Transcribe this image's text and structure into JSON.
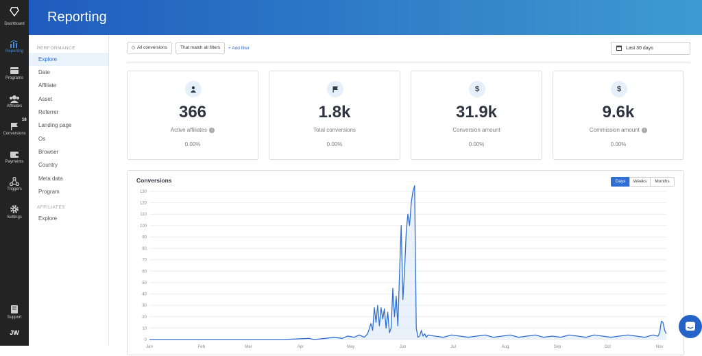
{
  "rail": {
    "items": [
      {
        "label": "Dashboard",
        "icon": "dashboard-icon"
      },
      {
        "label": "Reporting",
        "icon": "bar-chart-icon",
        "active": true
      },
      {
        "label": "Programs",
        "icon": "layers-icon"
      },
      {
        "label": "Affiliates",
        "icon": "users-icon"
      },
      {
        "label": "Conversions",
        "icon": "flag-icon",
        "badge": "16"
      },
      {
        "label": "Payments",
        "icon": "wallet-icon"
      },
      {
        "label": "Triggers",
        "icon": "network-icon"
      },
      {
        "label": "Settings",
        "icon": "gear-icon"
      },
      {
        "label": "Support",
        "icon": "book-icon"
      }
    ],
    "initials": "JW"
  },
  "header": {
    "title": "Reporting"
  },
  "subnav": {
    "performance_label": "PERFORMANCE",
    "performance_items": [
      "Explore",
      "Date",
      "Affiliate",
      "Asset",
      "Referrer",
      "Landing page",
      "Os",
      "Browser",
      "Country",
      "Meta data",
      "Program"
    ],
    "affiliates_label": "AFFILIATES",
    "affiliates_items": [
      "Explore"
    ]
  },
  "filters": {
    "all_conversions": "All conversions",
    "match": "That match all filters",
    "add_filter": "+ Add filter",
    "date_range": "Last 30 days"
  },
  "stats": [
    {
      "icon": "user-icon",
      "glyph": "",
      "value": "366",
      "label": "Active affiliates",
      "info": true,
      "change": "0.00%"
    },
    {
      "icon": "flag-icon",
      "glyph": "",
      "value": "1.8k",
      "label": "Total conversions",
      "info": false,
      "change": "0.00%"
    },
    {
      "icon": "dollar-icon",
      "glyph": "$",
      "value": "31.9k",
      "label": "Conversion amount",
      "info": false,
      "change": "0.00%"
    },
    {
      "icon": "dollar-icon",
      "glyph": "$",
      "value": "9.6k",
      "label": "Commission amount",
      "info": true,
      "change": "0.00%"
    }
  ],
  "chart": {
    "title": "Conversions",
    "toggles": [
      "Days",
      "Weeks",
      "Months"
    ],
    "active_toggle": "Days",
    "colors": {
      "line": "#2f6fd3",
      "fill": "#dbe7f7"
    }
  },
  "chart_data": {
    "type": "area",
    "title": "Conversions",
    "xlabel": "",
    "ylabel": "",
    "ylim": [
      0,
      130
    ],
    "yticks": [
      0,
      10,
      20,
      30,
      40,
      50,
      60,
      70,
      80,
      90,
      100,
      110,
      120,
      130
    ],
    "xticks": [
      {
        "label": "Jan",
        "x": 0
      },
      {
        "label": "Feb",
        "x": 31
      },
      {
        "label": "Mar",
        "x": 59
      },
      {
        "label": "Apr",
        "x": 90
      },
      {
        "label": "May",
        "x": 120
      },
      {
        "label": "Jun",
        "x": 151
      },
      {
        "label": "Jul",
        "x": 181
      },
      {
        "label": "Aug",
        "x": 212
      },
      {
        "label": "Sep",
        "x": 243
      },
      {
        "label": "Oct",
        "x": 273
      },
      {
        "label": "Nov",
        "x": 304
      }
    ],
    "grid": true,
    "series": [
      {
        "x": [
          0,
          20,
          40,
          60,
          80,
          95,
          98,
          105,
          110,
          115,
          118,
          122,
          125,
          128,
          130,
          132,
          133,
          134,
          135,
          136,
          137,
          138,
          139,
          140,
          141,
          142,
          143,
          144,
          145,
          146,
          147,
          148,
          149,
          150,
          151,
          152,
          153,
          154,
          155,
          156,
          157,
          158,
          159,
          160,
          161,
          162,
          163,
          164,
          165,
          166,
          170,
          175,
          180,
          185,
          190,
          195,
          200,
          205,
          210,
          215,
          220,
          225,
          230,
          235,
          240,
          245,
          250,
          255,
          260,
          265,
          270,
          275,
          280,
          285,
          290,
          295,
          300,
          303,
          304,
          305,
          306,
          307,
          308
        ],
        "values": [
          0,
          0,
          0,
          0,
          0,
          1,
          0,
          1,
          2,
          1,
          3,
          2,
          4,
          2,
          5,
          14,
          8,
          28,
          15,
          30,
          12,
          28,
          18,
          27,
          10,
          24,
          6,
          10,
          45,
          20,
          38,
          12,
          58,
          100,
          35,
          60,
          95,
          110,
          100,
          120,
          130,
          135,
          10,
          2,
          3,
          8,
          3,
          5,
          2,
          4,
          3,
          2,
          4,
          3,
          2,
          3,
          4,
          2,
          3,
          4,
          2,
          3,
          4,
          2,
          3,
          2,
          4,
          3,
          2,
          4,
          3,
          2,
          3,
          4,
          3,
          2,
          4,
          3,
          6,
          16,
          15,
          8,
          5
        ]
      }
    ]
  }
}
